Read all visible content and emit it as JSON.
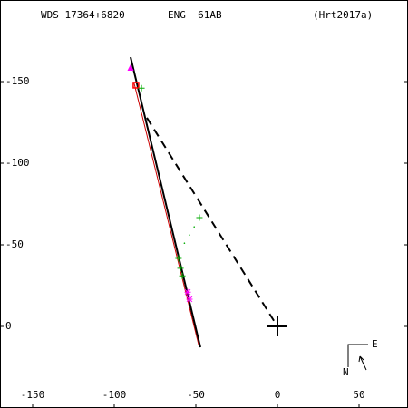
{
  "chart_data": {
    "type": "orbit",
    "header": [
      "WDS 17364+6820",
      "ENG  61AB",
      "(Hrt2017a)"
    ],
    "compass": {
      "east": "E",
      "north": "N"
    },
    "xlim": [
      -170,
      80
    ],
    "xticks": [
      -150,
      -100,
      -50,
      0,
      50
    ],
    "ylim": [
      50,
      -200
    ],
    "yticks": [
      -150,
      -100,
      -50,
      0
    ],
    "series": [
      {
        "color": "#cc0000",
        "style": "solid",
        "x": [
          -87.8,
          -48.3
        ],
        "y": [
          -148.9,
          11.1
        ]
      },
      {
        "color": "#000000",
        "style": "solid",
        "x": [
          -90,
          -47.2
        ],
        "y": [
          -165,
          12.8
        ]
      },
      {
        "color": "#000000",
        "style": "dashed",
        "x": [
          -80,
          0
        ],
        "y": [
          -127.8,
          0
        ]
      },
      {
        "color": "#ff00ff",
        "marker": "triangle",
        "x": [
          -90
        ],
        "y": [
          -158.3
        ]
      },
      {
        "color": "#ff0000",
        "marker": "square",
        "x": [
          -86.7
        ],
        "y": [
          -147.8
        ]
      },
      {
        "color": "#00aa00",
        "marker": "plus",
        "x": [
          -83.3,
          -47.8,
          -60.6,
          -59.4,
          -58.3
        ],
        "y": [
          -146,
          -66.7,
          -41.7,
          -35.6,
          -31
        ]
      },
      {
        "color": "#00aa00",
        "marker": "dot",
        "x": [
          -51,
          -54,
          -57
        ],
        "y": [
          -61,
          -56,
          -51
        ]
      },
      {
        "color": "#ff00ff",
        "marker": "star",
        "x": [
          -55,
          -53.9
        ],
        "y": [
          -21,
          -16.7
        ]
      },
      {
        "color": "#000000",
        "marker": "cross",
        "x": [
          0
        ],
        "y": [
          0
        ]
      }
    ]
  }
}
